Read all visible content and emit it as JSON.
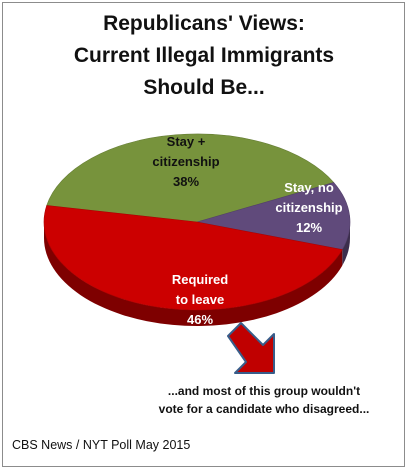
{
  "chart_data": {
    "type": "pie",
    "style": "3d",
    "title_lines": [
      "Republicans' Views:",
      "Current Illegal Immigrants",
      "Should Be..."
    ],
    "slices": [
      {
        "label_lines": [
          "Stay +",
          "citizenship",
          "38%"
        ],
        "value": 38,
        "color": "#77933c"
      },
      {
        "label_lines": [
          "Stay, no",
          "citizenship",
          "12%"
        ],
        "value": 12,
        "color": "#604a7b"
      },
      {
        "label_lines": [
          "Required",
          "to leave",
          "46%"
        ],
        "value": 46,
        "color": "#cc0000"
      }
    ],
    "annotation_lines": [
      "...and most of this group wouldn't",
      "vote for a candidate who disagreed..."
    ],
    "arrow_color": "#c00000",
    "source": "CBS News / NYT Poll May 2015"
  }
}
